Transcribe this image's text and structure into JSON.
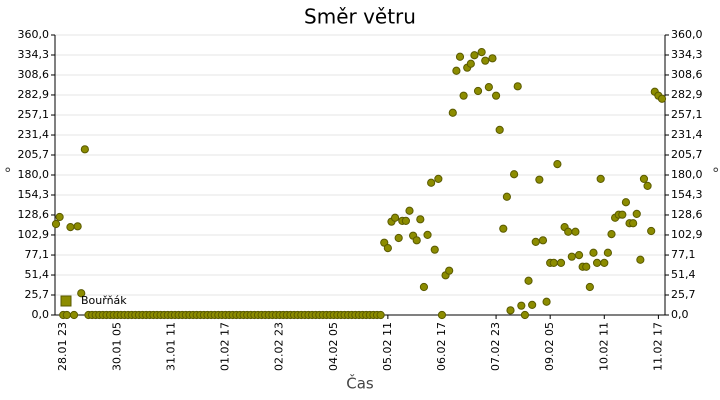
{
  "chart_data": {
    "type": "scatter",
    "title": "Směr větru",
    "xlabel": "Čas",
    "ylabel": "°",
    "y2label": "°",
    "categories": [
      null,
      null,
      "28.01 23",
      null,
      null,
      null,
      null,
      null,
      null,
      null,
      null,
      null,
      null,
      null,
      null,
      null,
      null,
      "30.01 05",
      null,
      null,
      null,
      null,
      null,
      null,
      null,
      null,
      null,
      null,
      null,
      null,
      null,
      null,
      "31.01 11",
      null,
      null,
      null,
      null,
      null,
      null,
      null,
      null,
      null,
      null,
      null,
      null,
      null,
      null,
      "01.02 17",
      null,
      null,
      null,
      null,
      null,
      null,
      null,
      null,
      null,
      null,
      null,
      null,
      null,
      null,
      "02.02 23",
      null,
      null,
      null,
      null,
      null,
      null,
      null,
      null,
      null,
      null,
      null,
      null,
      null,
      null,
      "04.02 05",
      null,
      null,
      null,
      null,
      null,
      null,
      null,
      null,
      null,
      null,
      null,
      null,
      null,
      null,
      "05.02 11",
      null,
      null,
      null,
      null,
      null,
      null,
      null,
      null,
      null,
      null,
      null,
      null,
      null,
      null,
      "06.02 17",
      null,
      null,
      null,
      null,
      null,
      null,
      null,
      null,
      null,
      null,
      null,
      null,
      null,
      null,
      "07.02 23",
      null,
      null,
      null,
      null,
      null,
      null,
      null,
      null,
      null,
      null,
      null,
      null,
      null,
      null,
      "09.02 05",
      null,
      null,
      null,
      null,
      null,
      null,
      null,
      null,
      null,
      null,
      null,
      null,
      null,
      null,
      "10.02 11",
      null,
      null,
      null,
      null,
      null,
      null,
      null,
      null,
      null,
      null,
      null,
      null,
      null,
      null,
      "11.02 17",
      null
    ],
    "series": [
      {
        "name": "Bouřňák",
        "color": "#8c8c00",
        "values": [
          117,
          126,
          0,
          0,
          113,
          0,
          114,
          28,
          213,
          0,
          0,
          0,
          0,
          0,
          0,
          0,
          0,
          0,
          0,
          0,
          0,
          0,
          0,
          0,
          0,
          0,
          0,
          0,
          0,
          0,
          0,
          0,
          0,
          0,
          0,
          0,
          0,
          0,
          0,
          0,
          0,
          0,
          0,
          0,
          0,
          0,
          0,
          0,
          0,
          0,
          0,
          0,
          0,
          0,
          0,
          0,
          0,
          0,
          0,
          0,
          0,
          0,
          0,
          0,
          0,
          0,
          0,
          0,
          0,
          0,
          0,
          0,
          0,
          0,
          0,
          0,
          0,
          0,
          0,
          0,
          0,
          0,
          0,
          0,
          0,
          0,
          0,
          0,
          0,
          0,
          0,
          93,
          86,
          120,
          125,
          99,
          121,
          121,
          134,
          102,
          96,
          123,
          36,
          103,
          170,
          84,
          175,
          0,
          51,
          57,
          260,
          314,
          332,
          282,
          318,
          323,
          334,
          288,
          338,
          327,
          293,
          330,
          282,
          238,
          111,
          152,
          6,
          181,
          294,
          12,
          0,
          44,
          13,
          94,
          174,
          96,
          17,
          67,
          67,
          194,
          67,
          113,
          107,
          75,
          107,
          77,
          62,
          62,
          36,
          80,
          67,
          175,
          67,
          80,
          104,
          125,
          129,
          129,
          145,
          118,
          118,
          130,
          71,
          175,
          166,
          108,
          287,
          282,
          278
        ]
      }
    ],
    "ylim": [
      0,
      360
    ],
    "yticks": [
      {
        "value": 0,
        "label": "0,0"
      },
      {
        "value": 25.7,
        "label": "25,7"
      },
      {
        "value": 51.4,
        "label": "51,4"
      },
      {
        "value": 77.1,
        "label": "77,1"
      },
      {
        "value": 102.9,
        "label": "102,9"
      },
      {
        "value": 128.6,
        "label": "128,6"
      },
      {
        "value": 154.3,
        "label": "154,3"
      },
      {
        "value": 180,
        "label": "180,0"
      },
      {
        "value": 205.7,
        "label": "205,7"
      },
      {
        "value": 231.4,
        "label": "231,4"
      },
      {
        "value": 257.1,
        "label": "257,1"
      },
      {
        "value": 282.9,
        "label": "282,9"
      },
      {
        "value": 308.6,
        "label": "308,6"
      },
      {
        "value": 334.3,
        "label": "334,3"
      },
      {
        "value": 360,
        "label": "360,0"
      }
    ],
    "y2lim": [
      0,
      360
    ],
    "y2ticks": [
      {
        "value": 0,
        "label": "0,0"
      },
      {
        "value": 25.7,
        "label": "25,7"
      },
      {
        "value": 51.4,
        "label": "51,4"
      },
      {
        "value": 77.1,
        "label": "77,1"
      },
      {
        "value": 102.9,
        "label": "102,9"
      },
      {
        "value": 128.6,
        "label": "128,6"
      },
      {
        "value": 154.3,
        "label": "154,3"
      },
      {
        "value": 180,
        "label": "180,0"
      },
      {
        "value": 205.7,
        "label": "205,7"
      },
      {
        "value": 231.4,
        "label": "231,4"
      },
      {
        "value": 257.1,
        "label": "257,1"
      },
      {
        "value": 282.9,
        "label": "282,9"
      },
      {
        "value": 308.6,
        "label": "308,6"
      },
      {
        "value": 334.3,
        "label": "334,3"
      },
      {
        "value": 360,
        "label": "360,0"
      }
    ],
    "grid": true,
    "legend": "lower left"
  }
}
